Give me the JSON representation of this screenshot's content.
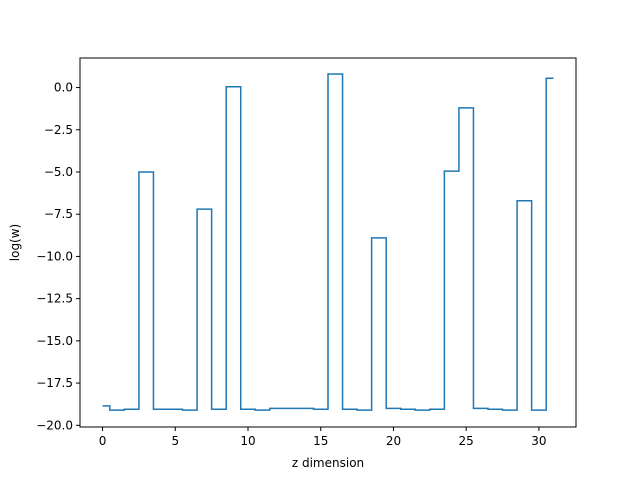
{
  "chart_data": {
    "type": "line",
    "drawstyle": "steps-mid",
    "xlabel": "z dimension",
    "ylabel": "log(w)",
    "xlim": [
      -1.55,
      32.55
    ],
    "ylim": [
      -20.1,
      1.75
    ],
    "xticks": [
      0,
      5,
      10,
      15,
      20,
      25,
      30
    ],
    "yticks": [
      0.0,
      -2.5,
      -5.0,
      -7.5,
      -10.0,
      -12.5,
      -15.0,
      -17.5,
      -20.0
    ],
    "xtick_labels": [
      "0",
      "5",
      "10",
      "15",
      "20",
      "25",
      "30"
    ],
    "ytick_labels": [
      "0.0",
      "−2.5",
      "−5.0",
      "−7.5",
      "−10.0",
      "−12.5",
      "−15.0",
      "−17.5",
      "−20.0"
    ],
    "grid": false,
    "series_color": "#1f77b4",
    "series": [
      {
        "x": [
          0,
          1,
          2,
          3,
          4,
          5,
          6,
          7,
          8,
          9,
          10,
          11,
          12,
          13,
          14,
          15,
          16,
          17,
          18,
          19,
          20,
          21,
          22,
          23,
          24,
          25,
          26,
          27,
          28,
          29,
          30,
          31
        ],
        "values": [
          -18.85,
          -19.1,
          -19.05,
          -5.0,
          -19.05,
          -19.05,
          -19.1,
          -7.2,
          -19.05,
          0.05,
          -19.05,
          -19.1,
          -19.0,
          -19.0,
          -19.0,
          -19.05,
          0.8,
          -19.05,
          -19.1,
          -8.9,
          -19.0,
          -19.05,
          -19.1,
          -19.05,
          -4.95,
          -1.2,
          -19.0,
          -19.05,
          -19.1,
          -6.7,
          -19.1,
          0.55
        ]
      }
    ]
  }
}
